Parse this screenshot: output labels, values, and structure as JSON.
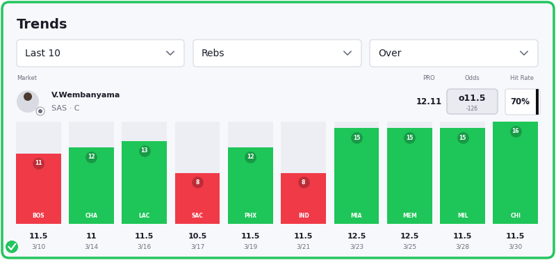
{
  "header": {
    "title": "Trends"
  },
  "filters": [
    "Last 10",
    "Rebs",
    "Over"
  ],
  "market": {
    "label": "Market",
    "player": "V.Wembanyama",
    "team": "SAS · C",
    "columns": {
      "pro": "PRO",
      "odds": "Odds",
      "hit_rate": "Hit Rate"
    },
    "pro": "12.11",
    "odds": {
      "line": "o11.5",
      "price": "-126"
    },
    "hit_rate": "70%"
  },
  "chart_data": {
    "type": "bar",
    "categories": [
      "BOS",
      "CHA",
      "LAC",
      "SAC",
      "PHX",
      "IND",
      "MIA",
      "MEM",
      "MIL",
      "CHI"
    ],
    "values": [
      11,
      12,
      13,
      8,
      12,
      8,
      15,
      15,
      15,
      16
    ],
    "lines": [
      11.5,
      11,
      11.5,
      10.5,
      11.5,
      11.5,
      12.5,
      12.5,
      11.5,
      11.5
    ],
    "dates": [
      "3/10",
      "3/14",
      "3/16",
      "3/17",
      "3/19",
      "3/21",
      "3/23",
      "3/25",
      "3/28",
      "3/30"
    ],
    "colors": [
      "#f03a47",
      "#1ec558",
      "#1ec558",
      "#f03a47",
      "#1ec558",
      "#f03a47",
      "#1ec558",
      "#1ec558",
      "#1ec558",
      "#1ec558"
    ],
    "ylim": [
      0,
      16
    ],
    "tick_labels": false,
    "data_labels": true
  }
}
